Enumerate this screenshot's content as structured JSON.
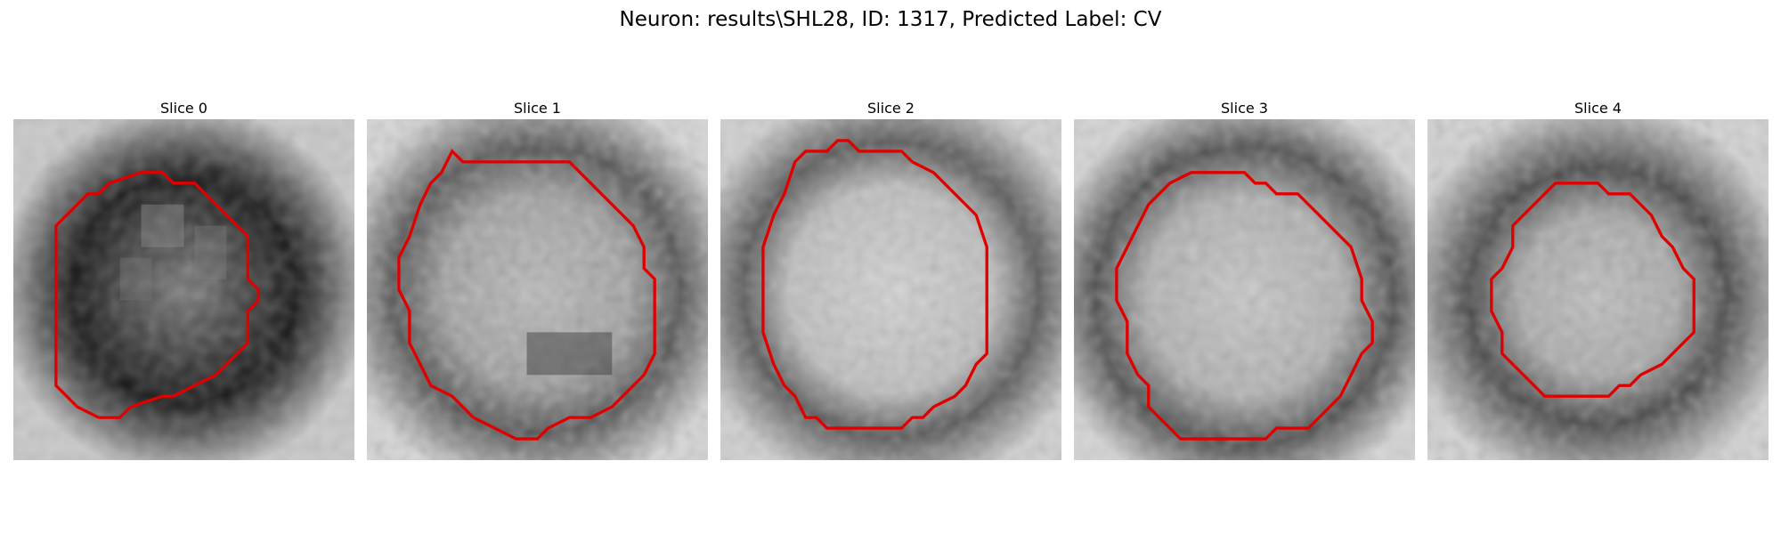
{
  "figure": {
    "title": "Neuron: results\\SHL28, ID: 1317, Predicted Label: CV"
  },
  "panels": [
    {
      "title": "Slice 0",
      "image": "grayscale electron microscopy tile with dark ring-shaped neuron and red contour"
    },
    {
      "title": "Slice 1",
      "image": "grayscale electron microscopy tile with lighter cell interior and red contour"
    },
    {
      "title": "Slice 2",
      "image": "grayscale electron microscopy tile with bright cell interior and red contour"
    },
    {
      "title": "Slice 3",
      "image": "grayscale electron microscopy tile with textured cell interior and red contour"
    },
    {
      "title": "Slice 4",
      "image": "grayscale electron microscopy tile with smaller cell and red contour"
    }
  ],
  "colors": {
    "contour": "#e00000",
    "background": "#ffffff"
  }
}
